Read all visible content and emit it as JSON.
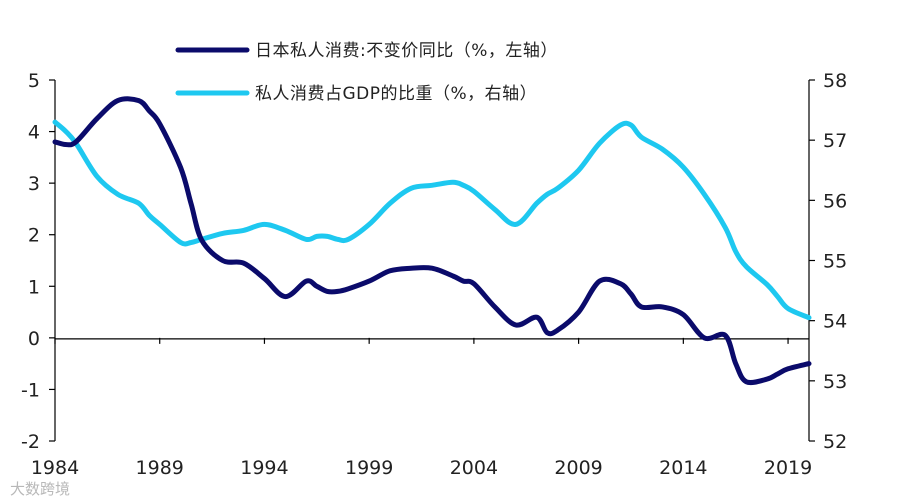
{
  "chart_data": {
    "type": "line",
    "x": [
      1984,
      1984.5,
      1985,
      1986,
      1987,
      1988,
      1988.5,
      1989,
      1990,
      1990.5,
      1991,
      1992,
      1993,
      1994,
      1995,
      1996,
      1996.5,
      1997,
      1997.5,
      1998,
      1999,
      2000,
      2001,
      2002,
      2003,
      2003.5,
      2004,
      2005,
      2006,
      2007,
      2007.5,
      2008,
      2009,
      2010,
      2011,
      2011.5,
      2012,
      2013,
      2014,
      2015,
      2016,
      2016.5,
      2017,
      2018,
      2018.5,
      2019,
      2020
    ],
    "series": [
      {
        "name": "日本私人消费:不变价同比（%，左轴）",
        "axis": "left",
        "color": "#0b0b6b",
        "values": [
          3.8,
          3.75,
          3.8,
          4.25,
          4.6,
          4.6,
          4.4,
          4.15,
          3.3,
          2.6,
          1.9,
          1.5,
          1.45,
          1.15,
          0.8,
          1.1,
          1.0,
          0.9,
          0.9,
          0.95,
          1.1,
          1.3,
          1.35,
          1.35,
          1.2,
          1.1,
          1.05,
          0.6,
          0.25,
          0.4,
          0.1,
          0.15,
          0.5,
          1.1,
          1.05,
          0.85,
          0.6,
          0.6,
          0.45,
          0.0,
          0.05,
          -0.5,
          -0.85,
          -0.8,
          -0.7,
          -0.6,
          -0.5
        ]
      },
      {
        "name": "私人消费占GDP的比重（%，右轴）",
        "axis": "right",
        "color": "#1ec8f0",
        "values": [
          57.3,
          57.15,
          56.95,
          56.4,
          56.1,
          55.95,
          55.75,
          55.6,
          55.3,
          55.3,
          55.35,
          55.45,
          55.5,
          55.6,
          55.5,
          55.35,
          55.4,
          55.4,
          55.35,
          55.35,
          55.6,
          55.95,
          56.2,
          56.25,
          56.3,
          56.25,
          56.15,
          55.85,
          55.6,
          55.95,
          56.1,
          56.2,
          56.5,
          56.95,
          57.25,
          57.25,
          57.05,
          56.85,
          56.55,
          56.1,
          55.55,
          55.15,
          54.9,
          54.6,
          54.4,
          54.2,
          54.05
        ]
      }
    ],
    "x_ticks": [
      "1984",
      "1989",
      "1994",
      "1999",
      "2004",
      "2009",
      "2014",
      "2019"
    ],
    "y_left": {
      "ticks": [
        "-2",
        "-1",
        "0",
        "1",
        "2",
        "3",
        "4",
        "5"
      ],
      "ylim": [
        -2,
        5
      ]
    },
    "y_right": {
      "ticks": [
        "52",
        "53",
        "54",
        "55",
        "56",
        "57",
        "58"
      ],
      "ylim": [
        52,
        58
      ]
    },
    "xlim": [
      1984,
      2020
    ],
    "grid": false,
    "legend": "top-center"
  },
  "watermark": "大数跨境"
}
